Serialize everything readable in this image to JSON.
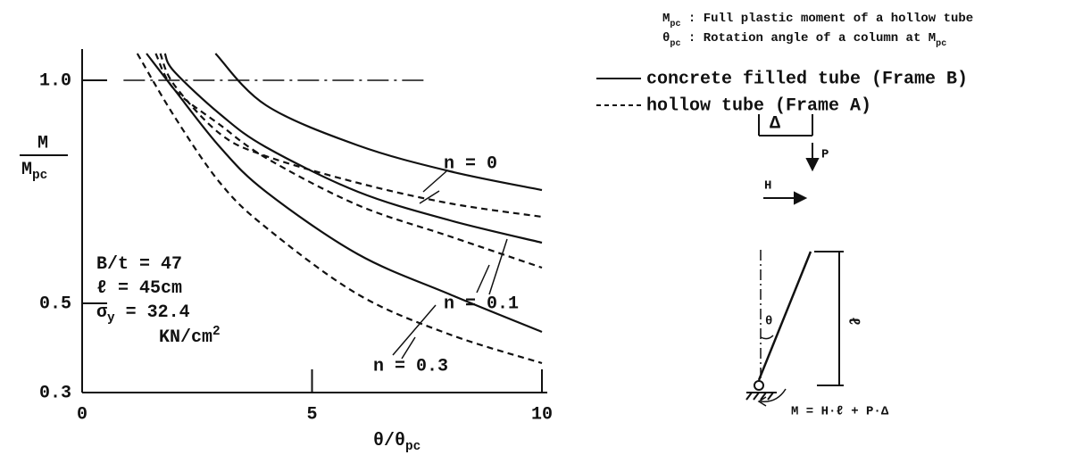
{
  "chart_data": {
    "type": "line",
    "xlim": [
      0,
      10
    ],
    "ylim": [
      0.3,
      1.07
    ],
    "xticks": [
      0,
      5,
      10
    ],
    "yticks": [
      0.3,
      0.5,
      {
        "value": 1,
        "label": "1.0"
      }
    ],
    "x_label": {
      "parts": [
        "θ/θ",
        "pc"
      ],
      "shift": "sub"
    },
    "y_label": {
      "numerator": "M",
      "denominator": {
        "parts": [
          "M",
          "pc"
        ],
        "shift": "sub"
      }
    },
    "notes": [
      {
        "parts": [
          "M",
          "pc",
          " : Full plastic moment of a hollow tube"
        ],
        "shift": "sub"
      },
      {
        "parts": [
          "θ",
          "pc",
          " : Rotation angle of a column at M",
          "pc"
        ],
        "shift": "sub"
      }
    ],
    "legend": [
      {
        "label": "concrete filled tube (Frame B)",
        "style": "solid"
      },
      {
        "label": "hollow tube (Frame A)",
        "style": "dashed"
      }
    ],
    "reference_line": {
      "y": 1,
      "x": [
        0.9,
        7.5
      ]
    },
    "parameters": [
      {
        "parts": [
          "B/t = 47"
        ],
        "shift": "sub"
      },
      {
        "parts": [
          "ℓ = 45cm"
        ],
        "shift": "sub"
      },
      {
        "parts": [
          "σ",
          "y",
          " = 32.4"
        ],
        "shift": "sub"
      },
      {
        "parts": [
          "KN/cm",
          "2"
        ],
        "shift": "sup"
      }
    ],
    "annotations": [
      "n = 0",
      "n = 0.1",
      "n = 0.3"
    ],
    "series": [
      {
        "style": "solid",
        "color": "#111",
        "x": [
          2.9,
          4,
          6,
          8,
          10
        ],
        "values": [
          1.06,
          0.944,
          0.854,
          0.796,
          0.754
        ]
      },
      {
        "style": "dashed",
        "color": "#111",
        "x": [
          1.7,
          2,
          3,
          4,
          6,
          8,
          10
        ],
        "values": [
          1.06,
          0.99,
          0.88,
          0.83,
          0.77,
          0.724,
          0.694
        ]
      },
      {
        "style": "solid",
        "color": "#111",
        "x": [
          1.8,
          2,
          3,
          4,
          6,
          8,
          10
        ],
        "values": [
          1.06,
          1.02,
          0.924,
          0.85,
          0.75,
          0.686,
          0.636
        ]
      },
      {
        "style": "dashed",
        "color": "#111",
        "x": [
          1.6,
          2,
          3,
          4,
          6,
          8,
          10
        ],
        "values": [
          1.06,
          0.98,
          0.9,
          0.826,
          0.72,
          0.65,
          0.58
        ]
      },
      {
        "style": "solid",
        "color": "#111",
        "x": [
          1.4,
          2,
          3,
          4,
          6,
          8,
          10
        ],
        "values": [
          1.06,
          0.98,
          0.85,
          0.75,
          0.61,
          0.52,
          0.436
        ]
      },
      {
        "style": "dashed",
        "color": "#111",
        "x": [
          1.2,
          2,
          3,
          4,
          6,
          8,
          10
        ],
        "values": [
          1.06,
          0.92,
          0.77,
          0.67,
          0.52,
          0.43,
          0.366
        ]
      }
    ],
    "diagram": {
      "delta": "Δ",
      "load_p": "P",
      "load_h": "H",
      "angle": "θ",
      "length": "ℓ",
      "moment": "M = H·ℓ + P·Δ"
    }
  }
}
